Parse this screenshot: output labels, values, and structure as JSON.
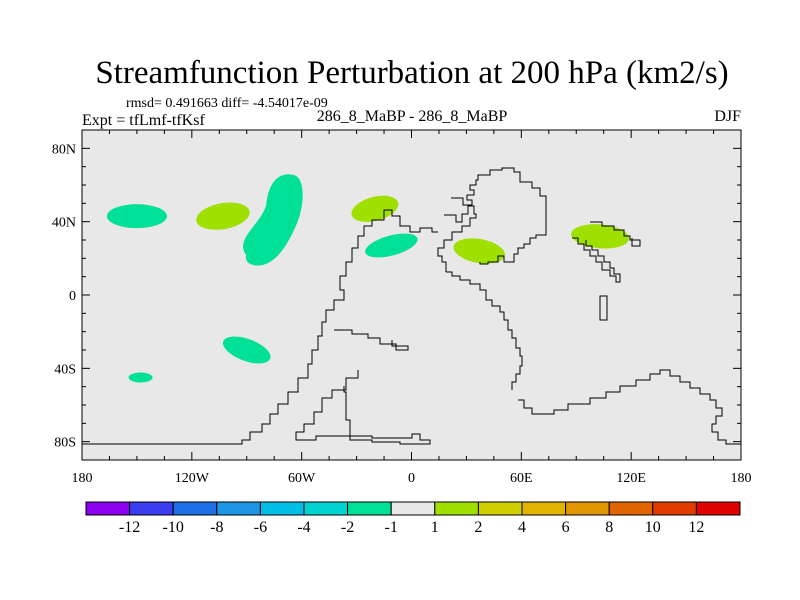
{
  "title": "Streamfunction Perturbation at 200 hPa (km2/s)",
  "stats": "rmsd= 0.491663 diff= -4.54017e-09",
  "left_label": "Expt = tfLmf-tfKsf",
  "center_label": "286_8_MaBP - 286_8_MaBP",
  "right_label": "DJF",
  "colors": {
    "background": "#e8e8e8",
    "coastline": "#000000",
    "negative_fill": "#00e096",
    "positive_fill": "#a0e000"
  },
  "map": {
    "lon_range": [
      -180,
      180
    ],
    "lat_range": [
      -90,
      90
    ],
    "x_ticks": [
      "180",
      "120W",
      "60W",
      "0",
      "60E",
      "120E",
      "180"
    ],
    "y_ticks": [
      "80N",
      "40N",
      "0",
      "40S",
      "80S"
    ]
  },
  "anomalies": [
    {
      "name": "anomaly-negative-pacific-north",
      "sign": "negative",
      "lon": -150,
      "lat": 43
    },
    {
      "name": "anomaly-positive-pacific-north",
      "sign": "positive",
      "lon": -103,
      "lat": 43
    },
    {
      "name": "anomaly-negative-north-america",
      "sign": "negative",
      "lon": -75,
      "lat": 37
    },
    {
      "name": "anomaly-positive-north-atlantic",
      "sign": "positive",
      "lon": -20,
      "lat": 47
    },
    {
      "name": "anomaly-negative-atlantic",
      "sign": "negative",
      "lon": -11,
      "lat": 27
    },
    {
      "name": "anomaly-positive-middle-east",
      "sign": "positive",
      "lon": 37,
      "lat": 24
    },
    {
      "name": "anomaly-positive-east-asia",
      "sign": "positive",
      "lon": 103,
      "lat": 32
    },
    {
      "name": "anomaly-negative-south-pacific",
      "sign": "negative",
      "lon": -90,
      "lat": -30
    },
    {
      "name": "anomaly-negative-south-pacific-small",
      "sign": "negative",
      "lon": -148,
      "lat": -45
    }
  ],
  "colorbar": {
    "colors": [
      "#8c00f0",
      "#3c3cf0",
      "#1e6ee6",
      "#1e96e6",
      "#00bee6",
      "#00d2d2",
      "#00e096",
      "#e8e8e8",
      "#a0e000",
      "#d0d000",
      "#e0b400",
      "#e09600",
      "#e06400",
      "#e03c00",
      "#e00000"
    ],
    "labels": [
      "-12",
      "-10",
      "-8",
      "-6",
      "-4",
      "-2",
      "-1",
      "1",
      "2",
      "4",
      "6",
      "8",
      "10",
      "12"
    ]
  }
}
